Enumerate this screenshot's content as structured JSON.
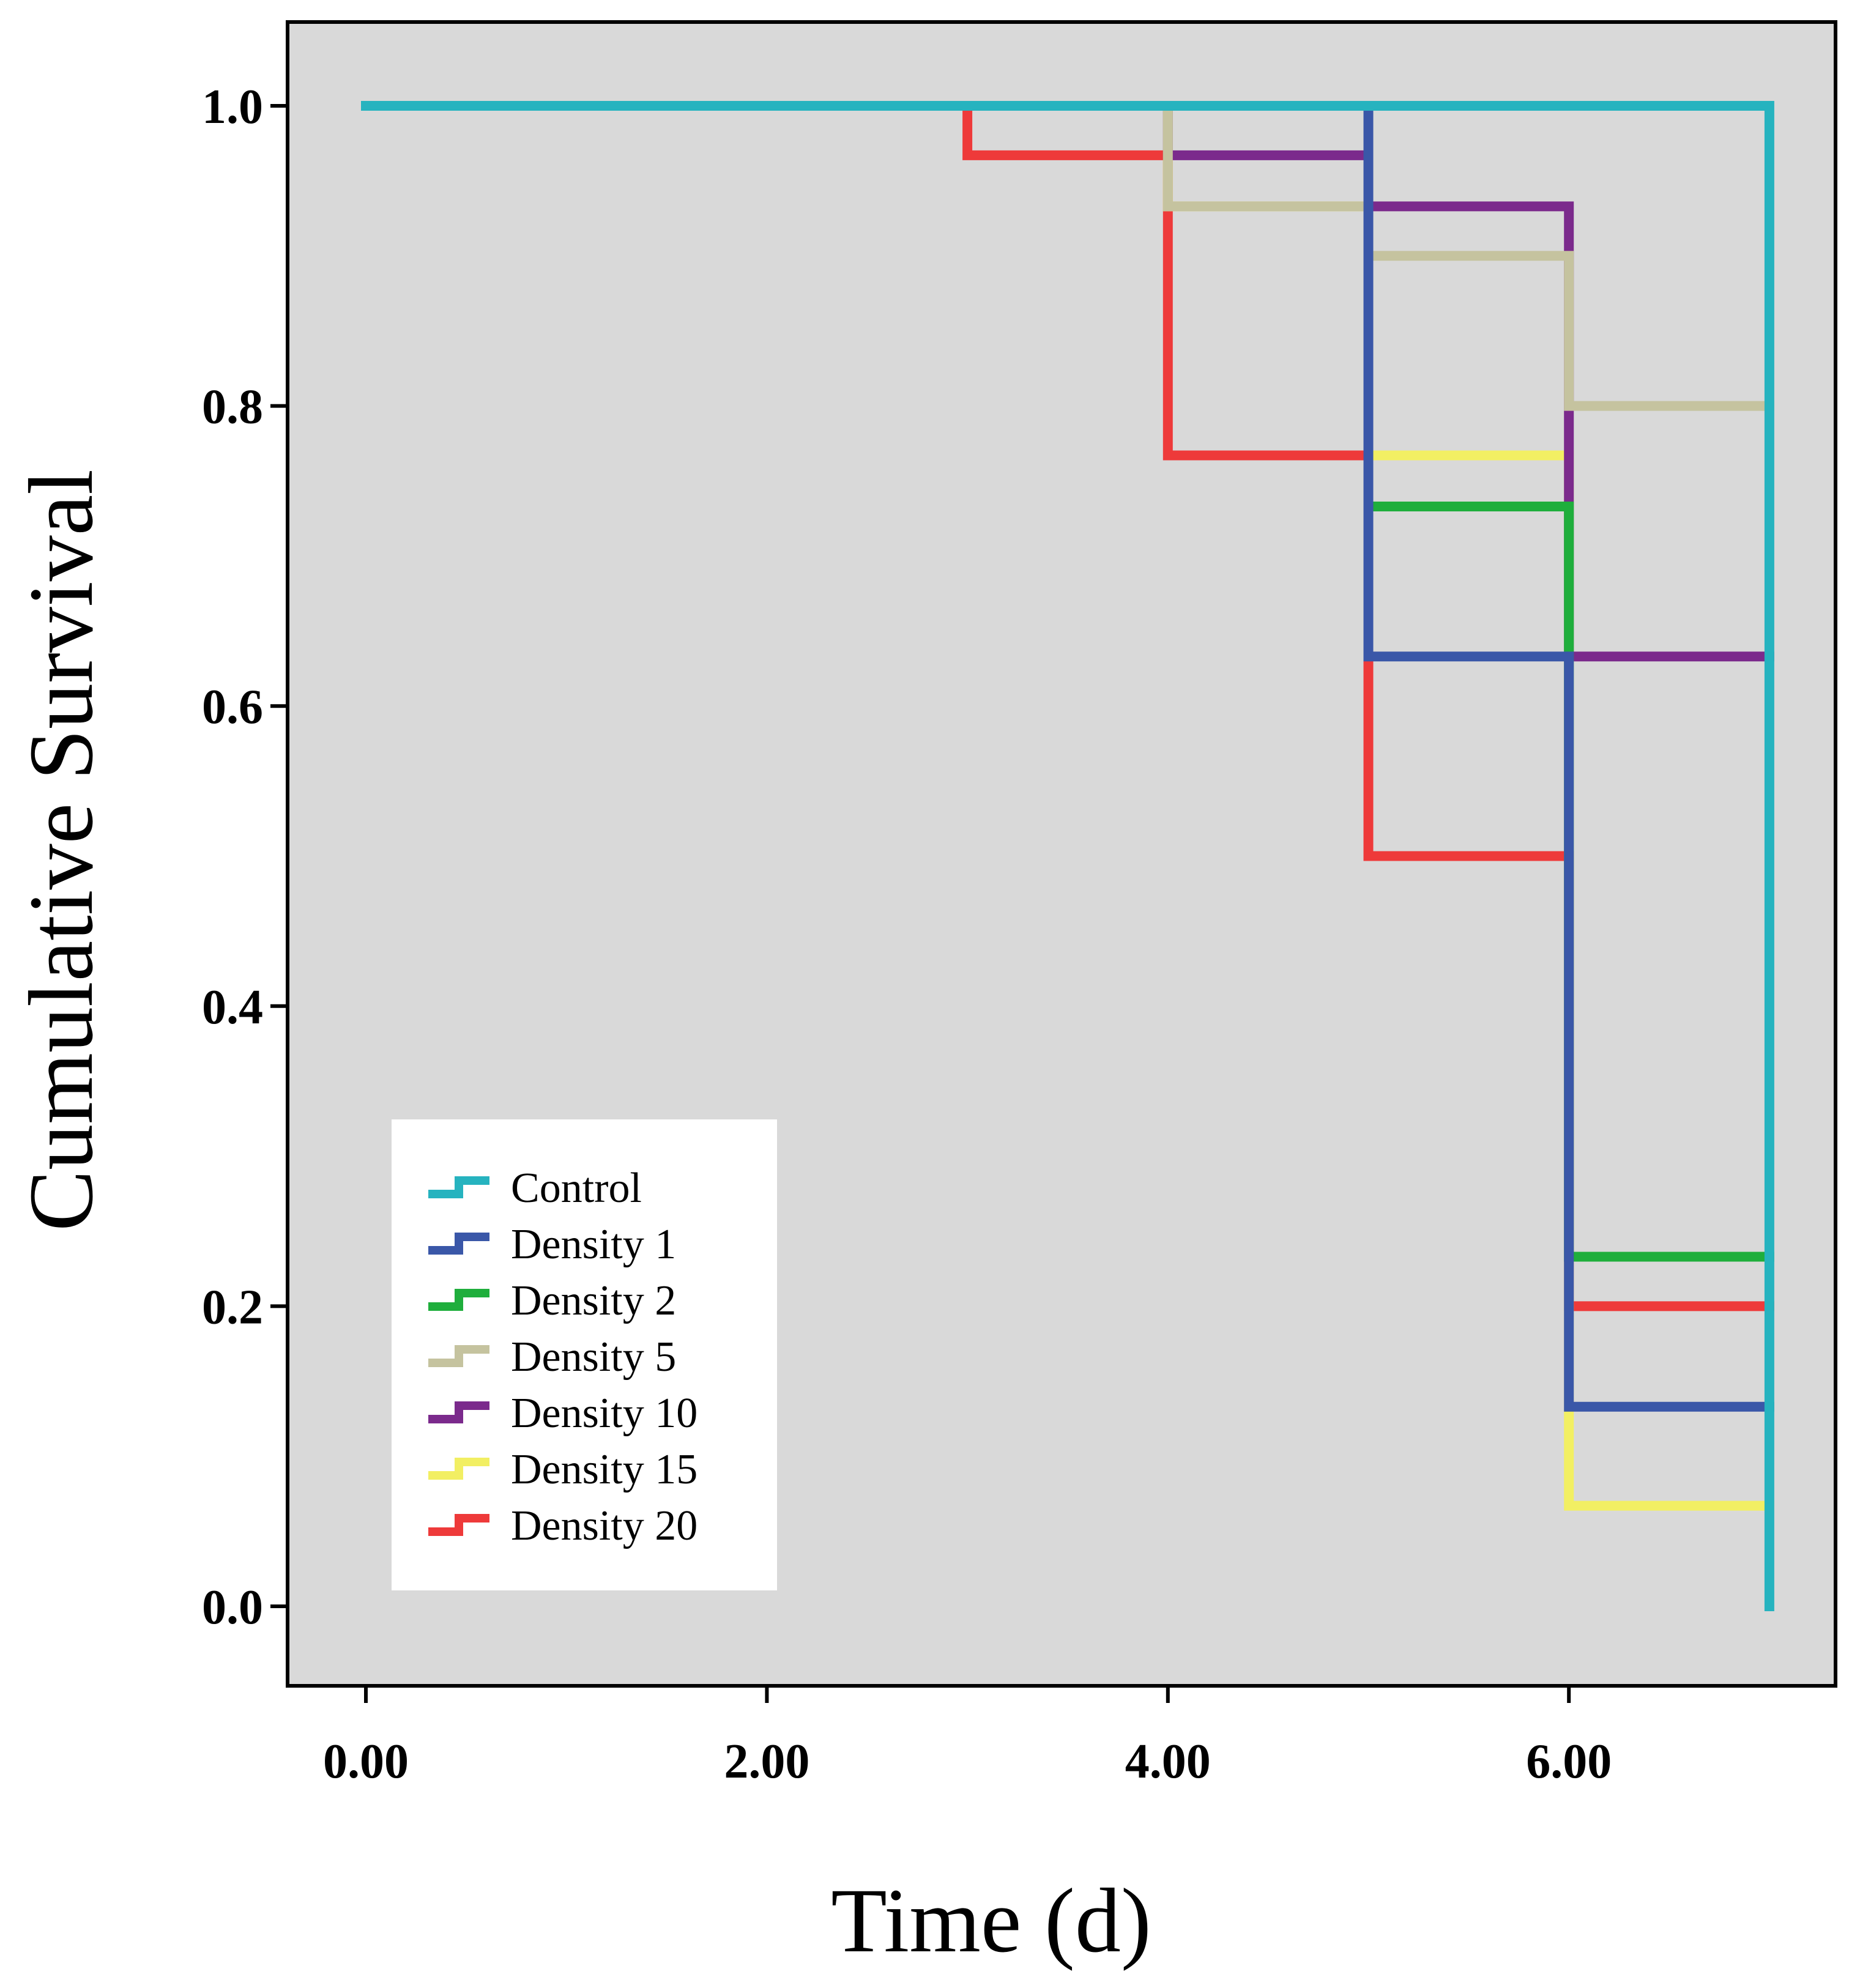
{
  "chart_data": {
    "type": "line",
    "subtype": "step",
    "title": "",
    "xlabel": "Time (d)",
    "ylabel": "Cumulative Survival",
    "xlim": [
      -0.2,
      7.2
    ],
    "ylim": [
      -0.05,
      1.05
    ],
    "x_ticks": [
      0,
      2,
      4,
      6
    ],
    "x_tick_labels": [
      "0.00",
      "2.00",
      "4.00",
      "6.00"
    ],
    "y_ticks": [
      0.0,
      0.2,
      0.4,
      0.6,
      0.8,
      1.0
    ],
    "y_tick_labels": [
      "0.0",
      "0.2",
      "0.4",
      "0.6",
      "0.8",
      "1.0"
    ],
    "grid": false,
    "background": "#d9d9d9",
    "legend_position": "lower-left",
    "series": [
      {
        "name": "Control",
        "color": "#26b3bf",
        "steps": [
          [
            0,
            1.0
          ],
          [
            7,
            1.0
          ],
          [
            7,
            0.0
          ]
        ]
      },
      {
        "name": "Density 1",
        "color": "#3a57a8",
        "steps": [
          [
            0,
            1.0
          ],
          [
            5,
            1.0
          ],
          [
            5,
            0.633
          ],
          [
            6,
            0.633
          ],
          [
            6,
            0.133
          ],
          [
            7,
            0.133
          ]
        ]
      },
      {
        "name": "Density 2",
        "color": "#1fae3c",
        "steps": [
          [
            0,
            1.0
          ],
          [
            5,
            1.0
          ],
          [
            5,
            0.733
          ],
          [
            6,
            0.733
          ],
          [
            6,
            0.233
          ],
          [
            7,
            0.233
          ]
        ]
      },
      {
        "name": "Density 5",
        "color": "#c5c39f",
        "steps": [
          [
            0,
            1.0
          ],
          [
            4,
            1.0
          ],
          [
            4,
            0.933
          ],
          [
            5,
            0.933
          ],
          [
            5,
            0.9
          ],
          [
            6,
            0.9
          ],
          [
            6,
            0.8
          ],
          [
            7,
            0.8
          ]
        ]
      },
      {
        "name": "Density 10",
        "color": "#7b2a8c",
        "steps": [
          [
            0,
            1.0
          ],
          [
            4,
            1.0
          ],
          [
            4,
            0.967
          ],
          [
            5,
            0.967
          ],
          [
            5,
            0.933
          ],
          [
            6,
            0.933
          ],
          [
            6,
            0.633
          ],
          [
            7,
            0.633
          ]
        ]
      },
      {
        "name": "Density 15",
        "color": "#f2ef63",
        "steps": [
          [
            0,
            1.0
          ],
          [
            4,
            1.0
          ],
          [
            4,
            0.933
          ],
          [
            5,
            0.933
          ],
          [
            5,
            0.767
          ],
          [
            6,
            0.767
          ],
          [
            6,
            0.067
          ],
          [
            7,
            0.067
          ]
        ]
      },
      {
        "name": "Density 20",
        "color": "#ee3a3a",
        "steps": [
          [
            0,
            1.0
          ],
          [
            3,
            1.0
          ],
          [
            3,
            0.967
          ],
          [
            4,
            0.967
          ],
          [
            4,
            0.767
          ],
          [
            5,
            0.767
          ],
          [
            5,
            0.5
          ],
          [
            6,
            0.5
          ],
          [
            6,
            0.2
          ],
          [
            7,
            0.2
          ]
        ]
      }
    ]
  }
}
